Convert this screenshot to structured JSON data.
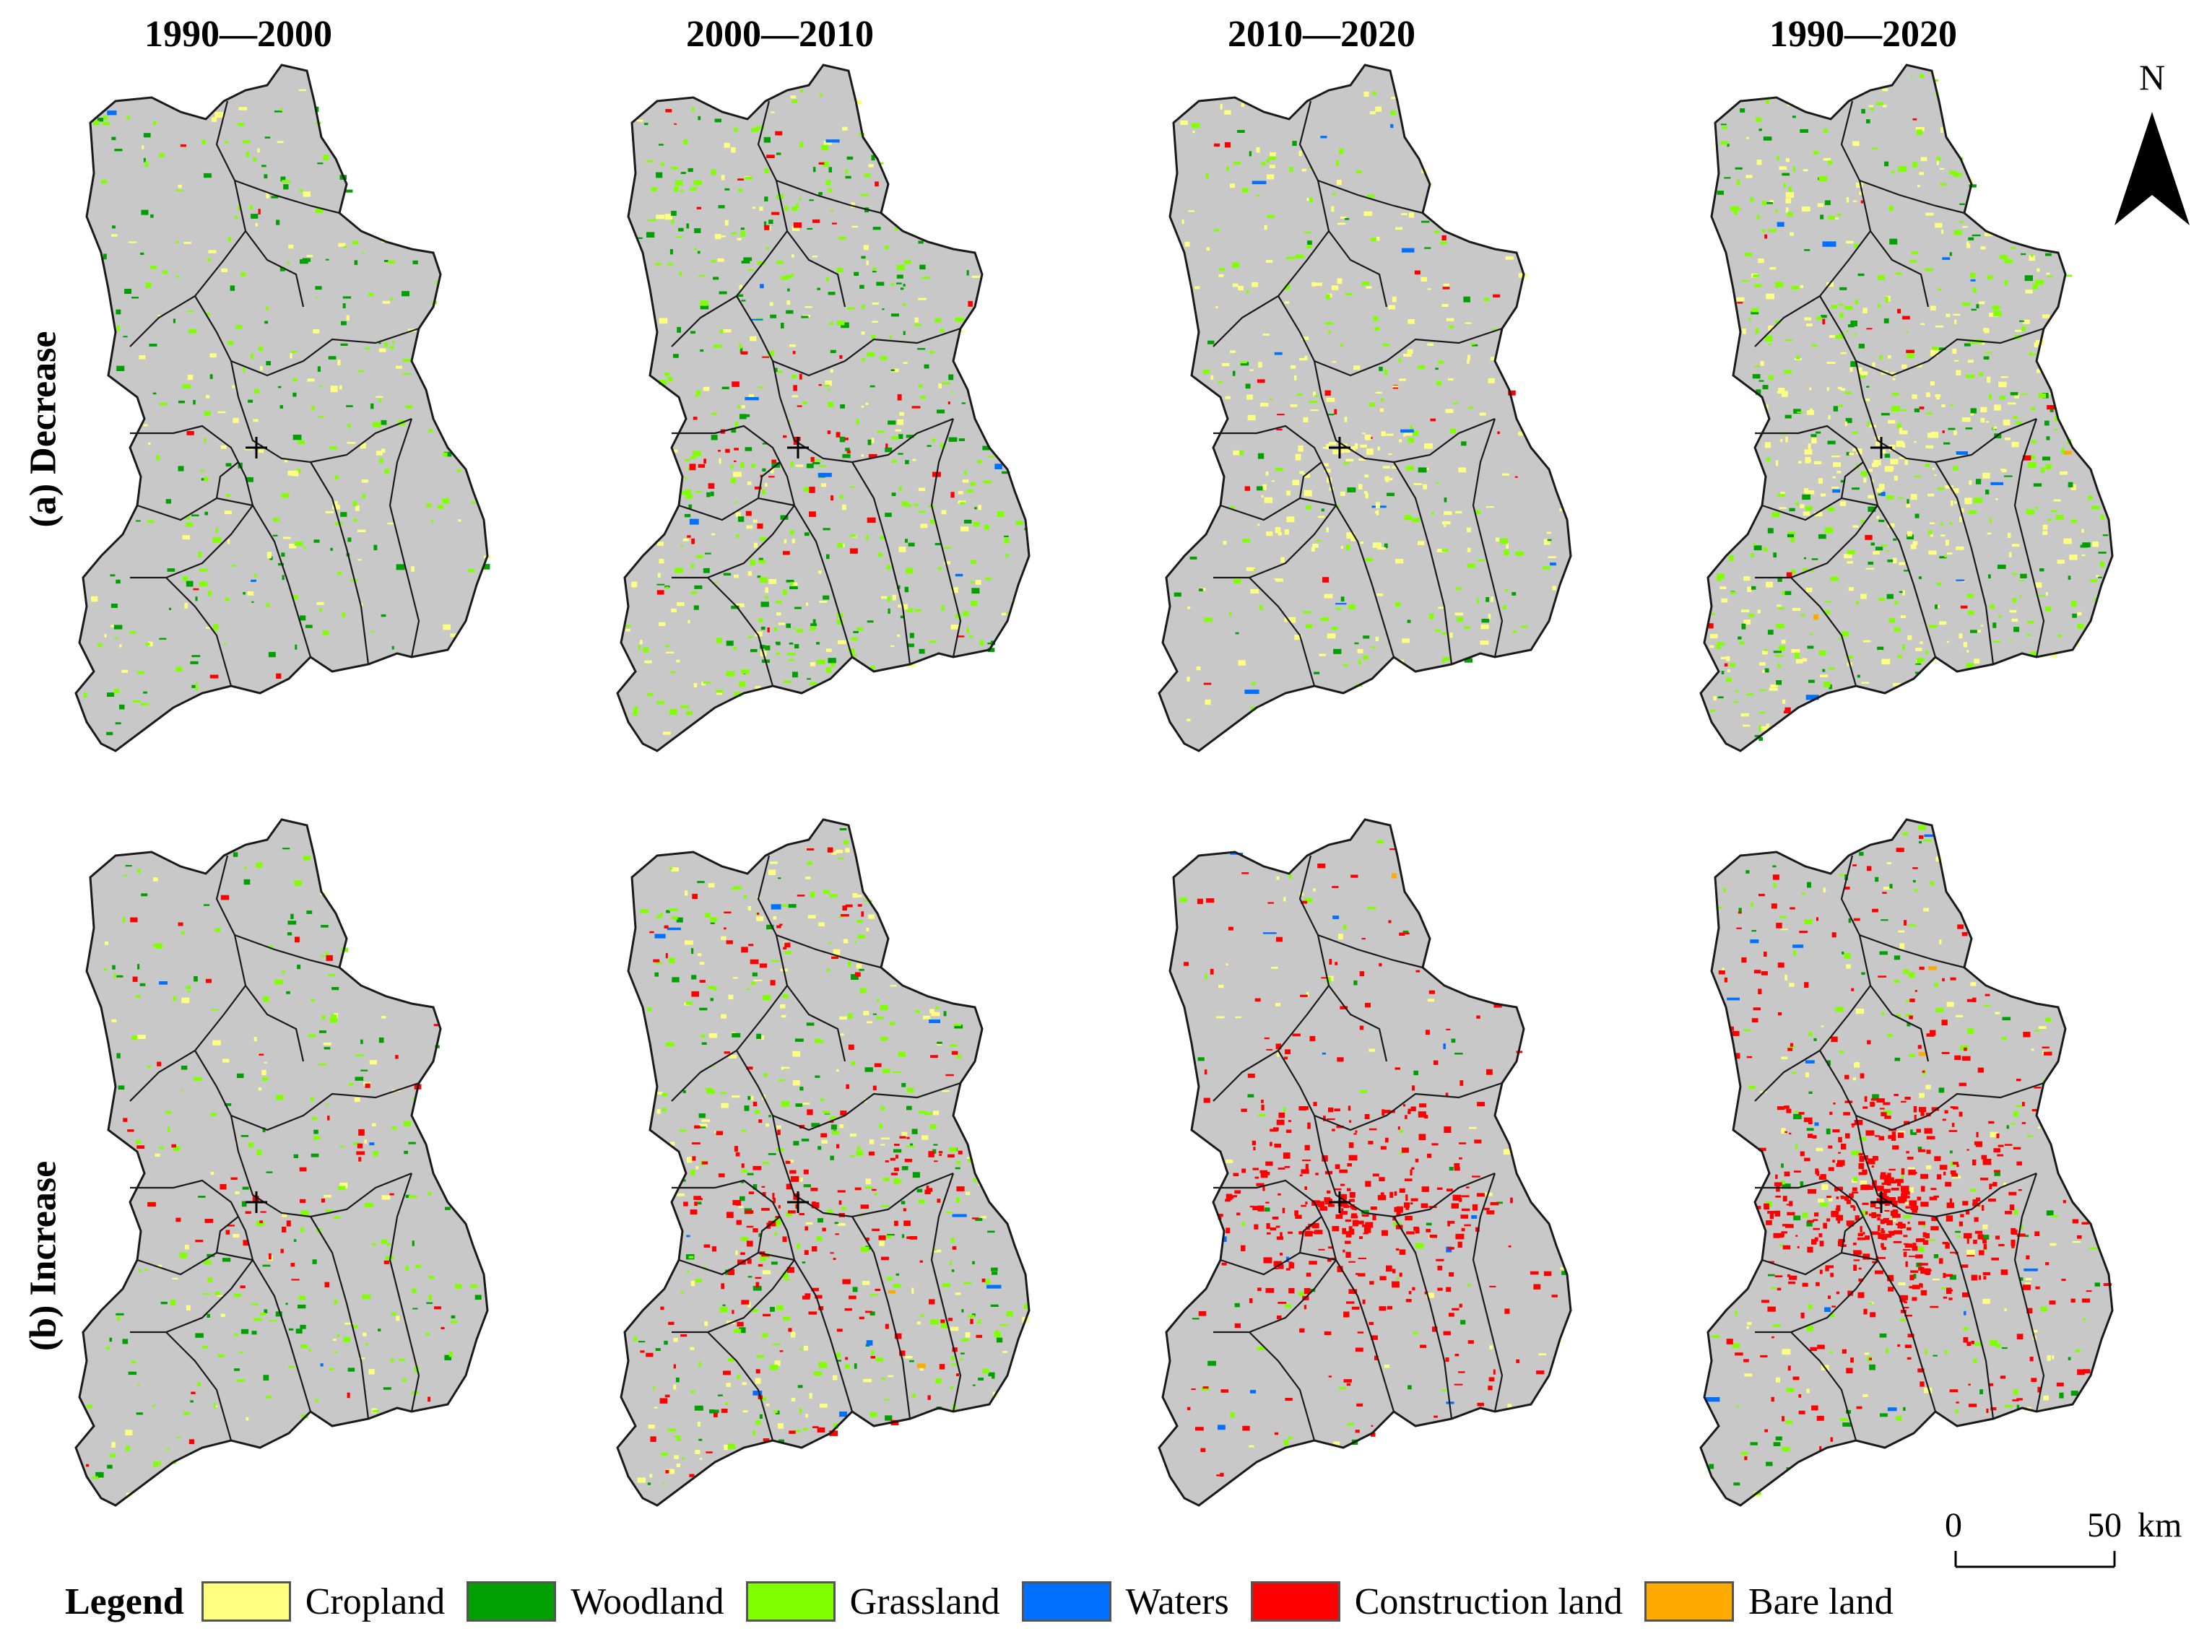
{
  "periods": [
    "1990—2000",
    "2000—2010",
    "2010—2020",
    "1990—2020"
  ],
  "rows": [
    "(a) Decrease",
    "(b) Increase"
  ],
  "north_label": "N",
  "scale": {
    "zero": "0",
    "max": "50",
    "unit": "km"
  },
  "legend": {
    "title": "Legend",
    "items": [
      {
        "label": "Cropland",
        "color": "#ffff80"
      },
      {
        "label": "Woodland",
        "color": "#00a000"
      },
      {
        "label": "Grassland",
        "color": "#80ff00"
      },
      {
        "label": "Waters",
        "color": "#0070ff"
      },
      {
        "label": "Construction land",
        "color": "#ff0000"
      },
      {
        "label": "Bare land",
        "color": "#ffaa00"
      }
    ]
  },
  "map_colors": {
    "land": "#c8c8c8",
    "boundary": "#1a1a1a"
  }
}
